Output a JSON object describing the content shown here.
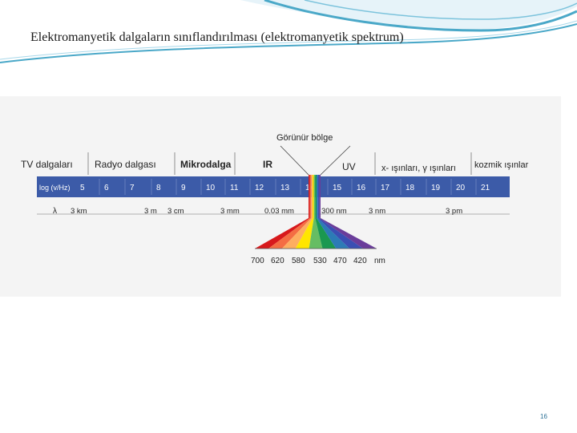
{
  "slide": {
    "title": "Elektromanyetik dalgaların sınıflandırılması (elektromanyetik spektrum)",
    "page_number": "16"
  },
  "spectrum": {
    "visible_region_label": "Görünür bölge",
    "regions": [
      "TV dalgaları",
      "Radyo dalgası",
      "Mikrodalga",
      "IR",
      "UV",
      "x- ışınları, γ ışınları",
      "kozmik ışınlar"
    ],
    "log_label": "log (v/Hz)",
    "log_values": [
      "5",
      "6",
      "7",
      "8",
      "9",
      "10",
      "11",
      "12",
      "13",
      "14",
      "15",
      "16",
      "17",
      "18",
      "19",
      "20",
      "21"
    ],
    "lambda_symbol": "λ",
    "wavelengths": [
      "3 km",
      "3 m",
      "3 cm",
      "3 mm",
      "0.03 mm",
      "300 nm",
      "3 nm",
      "3 pm"
    ],
    "visible_wavelengths": [
      "700",
      "620",
      "580",
      "530",
      "470",
      "420"
    ],
    "visible_unit": "nm",
    "colors": {
      "bar_fill": "#3c5ba8",
      "bar_text": "#ffffff",
      "slide_accent": "#4aa8c8",
      "page_number": "#2a6f95"
    }
  }
}
